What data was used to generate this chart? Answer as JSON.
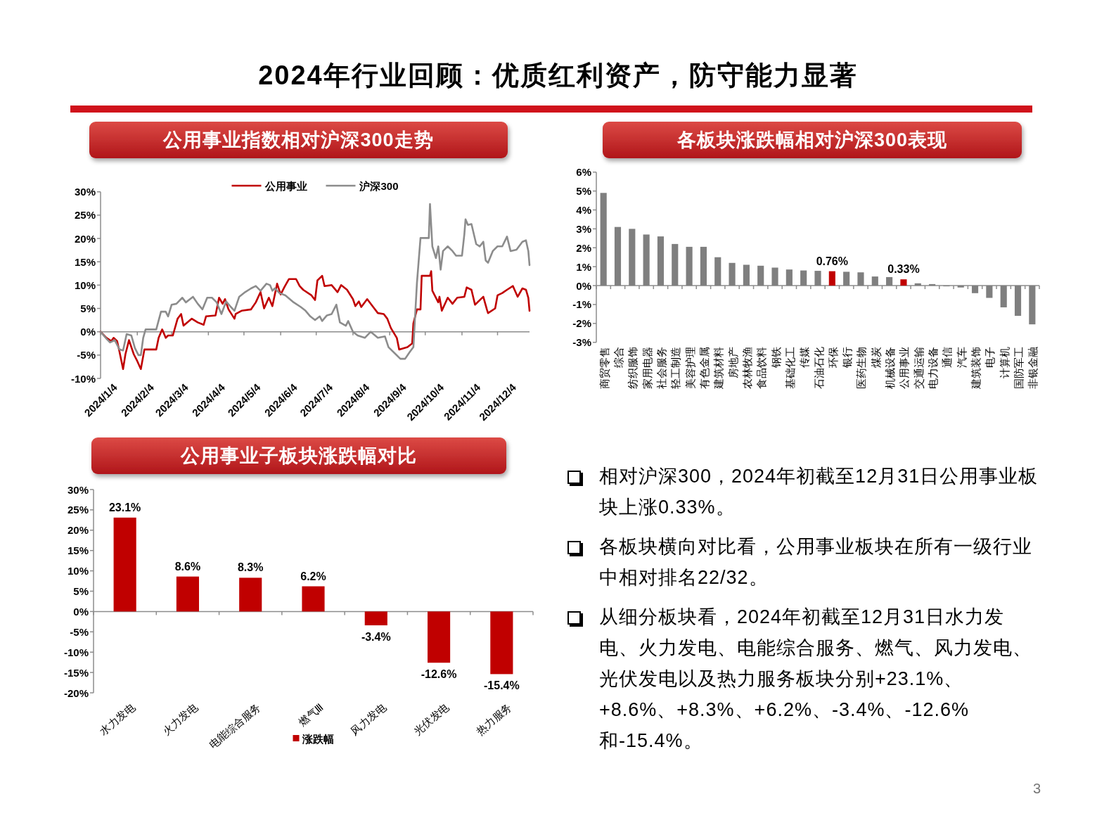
{
  "chart_data": [
    {
      "type": "other",
      "title": "2024年行业回顾：优质红利资产，防守能力显著",
      "annotations": [
        "相对沪深300，2024年初截至12月31日公用事业板块上涨0.33%。",
        "各板块横向对比看，公用事业板块在所有一级行业中相对排名22/32。",
        "从细分板块看，2024年初截至12月31日水力发电、火力发电、电能综合服务、燃气、风力发电、光伏发电以及热力服务板块分别+23.1%、+8.6%、+8.3%、+6.2%、-3.4%、-12.6%和-15.4%。",
        "3"
      ]
    },
    {
      "type": "line",
      "title": "公用事业指数相对沪深300走势",
      "legend": "top",
      "xlim": [
        "2024-01-04",
        "2024-12-31"
      ],
      "xticks": [
        {
          "value": "2024-01-04",
          "label": "2024/1/4"
        },
        {
          "value": "2024-02-04",
          "label": "2024/2/4"
        },
        {
          "value": "2024-03-04",
          "label": "2024/3/4"
        },
        {
          "value": "2024-04-04",
          "label": "2024/4/4"
        },
        {
          "value": "2024-05-04",
          "label": "2024/5/4"
        },
        {
          "value": "2024-06-04",
          "label": "2024/6/4"
        },
        {
          "value": "2024-07-04",
          "label": "2024/7/4"
        },
        {
          "value": "2024-08-04",
          "label": "2024/8/4"
        },
        {
          "value": "2024-09-04",
          "label": "2024/9/4"
        },
        {
          "value": "2024-10-04",
          "label": "2024/10/4"
        },
        {
          "value": "2024-11-04",
          "label": "2024/11/4"
        },
        {
          "value": "2024-12-04",
          "label": "2024/12/4"
        }
      ],
      "ylim": [
        -10,
        30
      ],
      "yticks": [
        {
          "value": -10,
          "label": "-10%"
        },
        {
          "value": -5,
          "label": "-5%"
        },
        {
          "value": 0,
          "label": "0%"
        },
        {
          "value": 5,
          "label": "5%"
        },
        {
          "value": 10,
          "label": "10%"
        },
        {
          "value": 15,
          "label": "15%"
        },
        {
          "value": 20,
          "label": "20%"
        },
        {
          "value": 25,
          "label": "25%"
        },
        {
          "value": 30,
          "label": "30%"
        }
      ],
      "series": [
        {
          "name": "公用事业",
          "color": "#c00000",
          "x": [
            "2024-01-04",
            "2024-01-09",
            "2024-01-13",
            "2024-01-15",
            "2024-01-18",
            "2024-01-20",
            "2024-01-23",
            "2024-01-25",
            "2024-01-28",
            "2024-02-01",
            "2024-02-04",
            "2024-02-07",
            "2024-02-10",
            "2024-02-20",
            "2024-02-22",
            "2024-02-25",
            "2024-02-28",
            "2024-03-01",
            "2024-03-05",
            "2024-03-09",
            "2024-03-12",
            "2024-03-14",
            "2024-03-21",
            "2024-03-26",
            "2024-03-31",
            "2024-04-02",
            "2024-04-10",
            "2024-04-13",
            "2024-04-16",
            "2024-04-18",
            "2024-04-21",
            "2024-04-26",
            "2024-04-27",
            "2024-05-02",
            "2024-05-10",
            "2024-05-14",
            "2024-05-18",
            "2024-05-21",
            "2024-05-25",
            "2024-05-28",
            "2024-06-01",
            "2024-06-04",
            "2024-06-07",
            "2024-06-11",
            "2024-06-17",
            "2024-06-20",
            "2024-06-23",
            "2024-06-30",
            "2024-07-03",
            "2024-07-05",
            "2024-07-09",
            "2024-07-11",
            "2024-07-17",
            "2024-07-22",
            "2024-07-25",
            "2024-07-30",
            "2024-08-04",
            "2024-08-06",
            "2024-08-09",
            "2024-08-11",
            "2024-08-16",
            "2024-08-22",
            "2024-08-25",
            "2024-08-30",
            "2024-09-02",
            "2024-09-05",
            "2024-09-10",
            "2024-09-12",
            "2024-09-19",
            "2024-09-23",
            "2024-09-24",
            "2024-09-27",
            "2024-09-30",
            "2024-10-01",
            "2024-10-08",
            "2024-10-09",
            "2024-10-10",
            "2024-10-15",
            "2024-10-16",
            "2024-10-18",
            "2024-10-23",
            "2024-10-27",
            "2024-10-31",
            "2024-11-06",
            "2024-11-08",
            "2024-11-12",
            "2024-11-15",
            "2024-11-22",
            "2024-11-25",
            "2024-11-26",
            "2024-12-02",
            "2024-12-04",
            "2024-12-08",
            "2024-12-12",
            "2024-12-17",
            "2024-12-21",
            "2024-12-25",
            "2024-12-28",
            "2024-12-30",
            "2024-12-31"
          ],
          "values": [
            0,
            -1.3,
            -2,
            -1.3,
            -2,
            -4.3,
            -8,
            -4.8,
            -1.8,
            -4.8,
            -6.3,
            -8,
            -3.8,
            -3.8,
            -1.3,
            0.5,
            -1.3,
            -0.8,
            -0.8,
            2.8,
            3.8,
            1.3,
            2.8,
            2,
            1.5,
            3.3,
            3.5,
            7.3,
            6,
            7,
            4.8,
            2.8,
            3.8,
            4.5,
            4.8,
            6.3,
            8.5,
            5,
            7.3,
            5.5,
            10.3,
            8,
            9.5,
            11.3,
            11.3,
            9.8,
            9,
            7.8,
            6.8,
            11,
            12,
            9.8,
            10,
            8.5,
            10,
            9,
            7,
            5.5,
            6.5,
            5.3,
            7,
            5,
            4,
            3.8,
            2.8,
            0.8,
            -1.3,
            -3.8,
            -3.3,
            -2.5,
            1.8,
            4.8,
            4.8,
            12,
            12,
            13,
            8.8,
            6.3,
            7.5,
            4.5,
            7.3,
            6,
            7.3,
            7.5,
            9.5,
            9,
            5.8,
            7.5,
            4.8,
            4,
            5,
            7.8,
            8.3,
            9,
            9.8,
            7.5,
            9.3,
            9,
            7.3,
            4.5
          ]
        },
        {
          "name": "沪深300",
          "color": "#8c8c8c",
          "x": [
            "2024-01-04",
            "2024-01-09",
            "2024-01-12",
            "2024-01-16",
            "2024-01-20",
            "2024-01-23",
            "2024-01-26",
            "2024-01-30",
            "2024-02-02",
            "2024-02-05",
            "2024-02-07",
            "2024-02-09",
            "2024-02-11",
            "2024-02-20",
            "2024-02-24",
            "2024-02-28",
            "2024-03-01",
            "2024-03-04",
            "2024-03-08",
            "2024-03-13",
            "2024-03-16",
            "2024-03-22",
            "2024-03-26",
            "2024-03-30",
            "2024-04-03",
            "2024-04-07",
            "2024-04-11",
            "2024-04-15",
            "2024-04-19",
            "2024-04-23",
            "2024-04-26",
            "2024-04-30",
            "2024-05-05",
            "2024-05-10",
            "2024-05-14",
            "2024-05-18",
            "2024-05-23",
            "2024-05-26",
            "2024-05-28",
            "2024-05-30",
            "2024-06-03",
            "2024-06-08",
            "2024-06-15",
            "2024-06-21",
            "2024-06-25",
            "2024-06-29",
            "2024-07-03",
            "2024-07-07",
            "2024-07-09",
            "2024-07-13",
            "2024-07-17",
            "2024-07-21",
            "2024-07-24",
            "2024-07-29",
            "2024-07-31",
            "2024-08-04",
            "2024-08-08",
            "2024-08-14",
            "2024-08-19",
            "2024-08-25",
            "2024-08-31",
            "2024-09-03",
            "2024-09-09",
            "2024-09-13",
            "2024-09-17",
            "2024-09-21",
            "2024-09-24",
            "2024-09-27",
            "2024-09-30",
            "2024-10-07",
            "2024-10-08",
            "2024-10-10",
            "2024-10-13",
            "2024-10-15",
            "2024-10-17",
            "2024-10-19",
            "2024-10-23",
            "2024-10-27",
            "2024-10-30",
            "2024-11-04",
            "2024-11-06",
            "2024-11-07",
            "2024-11-09",
            "2024-11-12",
            "2024-11-16",
            "2024-11-19",
            "2024-11-22",
            "2024-11-24",
            "2024-11-26",
            "2024-11-30",
            "2024-12-04",
            "2024-12-08",
            "2024-12-12",
            "2024-12-15",
            "2024-12-20",
            "2024-12-25",
            "2024-12-28",
            "2024-12-30",
            "2024-12-31"
          ],
          "values": [
            0,
            -1.5,
            -2.3,
            -1.8,
            -3.8,
            -4,
            -0.5,
            -0.8,
            -3.5,
            -5,
            -5,
            -1.3,
            0.5,
            0.5,
            4.3,
            4.3,
            3.3,
            5.8,
            6,
            7.3,
            6.3,
            7.5,
            6,
            4.8,
            7.3,
            7.3,
            6.3,
            3.8,
            6.5,
            5.3,
            4.5,
            7.5,
            8.5,
            9.3,
            9.8,
            8.8,
            10.3,
            10,
            8.8,
            9.3,
            8.3,
            7.8,
            6.3,
            5.3,
            4.5,
            3.3,
            2.5,
            3.3,
            2.3,
            3.5,
            3.8,
            5.8,
            2,
            1.3,
            2.3,
            0,
            -0.8,
            -1.3,
            0,
            -1.3,
            -1,
            -3.3,
            -4.8,
            -5.8,
            -5.8,
            -4.3,
            -3.3,
            10.5,
            20.1,
            20.1,
            27.4,
            18.3,
            15.8,
            18.3,
            13.3,
            17.3,
            18.3,
            17.3,
            16.3,
            16.3,
            20.9,
            24.1,
            22.9,
            23.1,
            18.8,
            18.3,
            19.3,
            15.3,
            14.8,
            17.3,
            18.3,
            18.3,
            20.4,
            17.3,
            17.6,
            19.3,
            19.6,
            17.3,
            14.3
          ]
        }
      ]
    },
    {
      "type": "bar",
      "title": "各板块涨跌幅相对沪深300表现",
      "categories": [
        "商贸零售",
        "综合",
        "纺织服饰",
        "家用电器",
        "社会服务",
        "轻工制造",
        "美容护理",
        "有色金属",
        "建筑材料",
        "房地产",
        "农林牧渔",
        "食品饮料",
        "钢铁",
        "基础化工",
        "传媒",
        "石油石化",
        "环保",
        "银行",
        "医药生物",
        "煤炭",
        "机械设备",
        "公用事业",
        "交通运输",
        "电力设备",
        "通信",
        "汽车",
        "建筑装饰",
        "电子",
        "计算机",
        "国防军工",
        "非银金融"
      ],
      "values": [
        4.9,
        3.1,
        3.0,
        2.7,
        2.6,
        2.2,
        2.05,
        2.05,
        1.5,
        1.2,
        1.1,
        1.05,
        0.95,
        0.85,
        0.8,
        0.78,
        0.76,
        0.73,
        0.7,
        0.48,
        0.45,
        0.33,
        0.12,
        0.08,
        -0.04,
        -0.1,
        -0.4,
        -0.65,
        -1.15,
        -1.6,
        -2.05
      ],
      "colors": [
        "#7f7f7f",
        "#7f7f7f",
        "#7f7f7f",
        "#7f7f7f",
        "#7f7f7f",
        "#7f7f7f",
        "#7f7f7f",
        "#7f7f7f",
        "#7f7f7f",
        "#7f7f7f",
        "#7f7f7f",
        "#7f7f7f",
        "#7f7f7f",
        "#7f7f7f",
        "#7f7f7f",
        "#7f7f7f",
        "#c00000",
        "#7f7f7f",
        "#7f7f7f",
        "#7f7f7f",
        "#7f7f7f",
        "#c00000",
        "#7f7f7f",
        "#7f7f7f",
        "#7f7f7f",
        "#7f7f7f",
        "#7f7f7f",
        "#7f7f7f",
        "#7f7f7f",
        "#7f7f7f",
        "#7f7f7f"
      ],
      "value_labels": [
        null,
        null,
        null,
        null,
        null,
        null,
        null,
        null,
        null,
        null,
        null,
        null,
        null,
        null,
        null,
        null,
        "0.76%",
        null,
        null,
        null,
        null,
        "0.33%",
        null,
        null,
        null,
        null,
        null,
        null,
        null,
        null,
        null
      ],
      "ylim": [
        -3,
        6
      ],
      "yticks": [
        {
          "value": -3,
          "label": "-3%"
        },
        {
          "value": -2,
          "label": "-2%"
        },
        {
          "value": -1,
          "label": "-1%"
        },
        {
          "value": 0,
          "label": "0%"
        },
        {
          "value": 1,
          "label": "1%"
        },
        {
          "value": 2,
          "label": "2%"
        },
        {
          "value": 3,
          "label": "3%"
        },
        {
          "value": 4,
          "label": "4%"
        },
        {
          "value": 5,
          "label": "5%"
        },
        {
          "value": 6,
          "label": "6%"
        }
      ]
    },
    {
      "type": "bar",
      "title": "公用事业子板块涨跌幅对比",
      "legend": "bottom",
      "categories": [
        "水力发电",
        "火力发电",
        "电能综合服务",
        "燃气Ⅲ",
        "风力发电",
        "光伏发电",
        "热力服务"
      ],
      "series": [
        {
          "name": "涨跌幅",
          "color": "#c00000",
          "values": [
            23.1,
            8.6,
            8.3,
            6.2,
            -3.4,
            -12.6,
            -15.4
          ],
          "value_labels": [
            "23.1%",
            "8.6%",
            "8.3%",
            "6.2%",
            "-3.4%",
            "-12.6%",
            "-15.4%"
          ]
        }
      ],
      "ylim": [
        -20,
        30
      ],
      "yticks": [
        {
          "value": -20,
          "label": "-20%"
        },
        {
          "value": -15,
          "label": "-15%"
        },
        {
          "value": -10,
          "label": "-10%"
        },
        {
          "value": -5,
          "label": "-5%"
        },
        {
          "value": 0,
          "label": "0%"
        },
        {
          "value": 5,
          "label": "5%"
        },
        {
          "value": 10,
          "label": "10%"
        },
        {
          "value": 15,
          "label": "15%"
        },
        {
          "value": 20,
          "label": "20%"
        },
        {
          "value": 25,
          "label": "25%"
        },
        {
          "value": 30,
          "label": "30%"
        }
      ]
    }
  ]
}
